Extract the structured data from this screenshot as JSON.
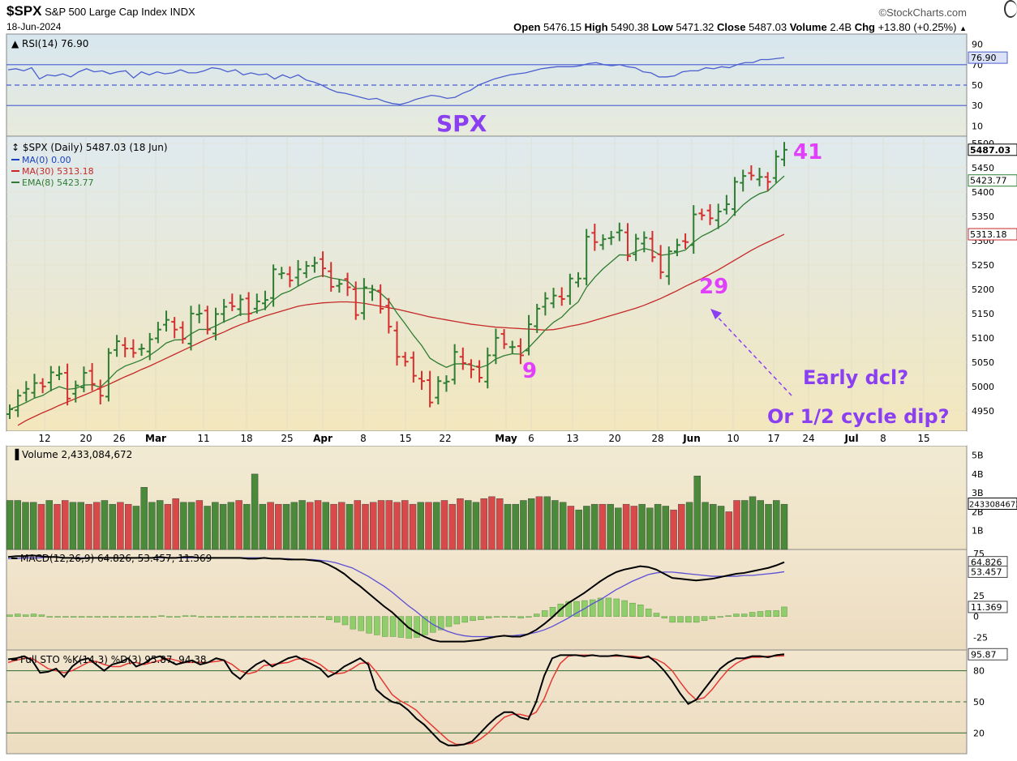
{
  "header": {
    "symbol": "$SPX",
    "name": "S&P 500 Large Cap Index",
    "exchange": "INDX",
    "date": "18-Jun-2024",
    "brand": "©StockCharts.com",
    "open_label": "Open",
    "open": "5476.15",
    "high_label": "High",
    "high": "5490.38",
    "low_label": "Low",
    "low": "5471.32",
    "close_label": "Close",
    "close": "5487.03",
    "volume_label": "Volume",
    "volume": "2.4B",
    "chg_label": "Chg",
    "chg": "+13.80 (+0.25%)",
    "chg_arrow": "▲"
  },
  "colors": {
    "up": "#2e7d32",
    "down": "#d32f2f",
    "ma30": "#c62828",
    "ema8": "#2e7d32",
    "rsi": "#4a5fd0",
    "macd": "#000000",
    "signal": "#5b4fd6",
    "annotation_magenta": "#e040fb",
    "annotation_purple": "#8a3ff0",
    "panel_bg_top": "#dde9ee",
    "panel_bg_bottom": "#f0e6c0"
  },
  "annotations": {
    "spx": "SPX",
    "n41": "41",
    "n29": "29",
    "n9": "9",
    "early": "Early dcl?",
    "half": "Or 1/2 cycle dip?"
  },
  "chart_data": [
    {
      "type": "line",
      "panel": "RSI",
      "legend": "RSI(14) 76.90",
      "y_ticks": [
        90,
        70,
        50,
        30,
        10
      ],
      "ylim": [
        0,
        100
      ],
      "last_value_label": "76.90",
      "series": [
        {
          "name": "RSI(14)",
          "values": [
            65,
            66,
            64,
            67,
            56,
            60,
            59,
            61,
            58,
            63,
            66,
            63,
            64,
            61,
            63,
            64,
            57,
            63,
            60,
            63,
            61,
            62,
            65,
            62,
            62,
            64,
            67,
            66,
            63,
            65,
            60,
            62,
            60,
            61,
            56,
            60,
            57,
            60,
            55,
            53,
            50,
            46,
            43,
            42,
            40,
            38,
            36,
            37,
            34,
            32,
            31,
            33,
            36,
            38,
            40,
            39,
            37,
            38,
            42,
            45,
            50,
            53,
            56,
            58,
            60,
            61,
            62,
            64,
            66,
            67,
            68,
            68,
            68,
            69,
            71,
            72,
            70,
            69,
            70,
            68,
            67,
            63,
            62,
            58,
            58,
            59,
            63,
            64,
            64,
            67,
            66,
            68,
            67,
            70,
            72,
            72,
            75,
            75,
            76,
            76.9
          ]
        }
      ]
    },
    {
      "type": "bar",
      "panel": "Price",
      "legend": "$SPX (Daily) 5487.03 (18 Jun)",
      "legend_items": [
        "MA(0) 0.00",
        "MA(30) 5313.18",
        "EMA(8) 5423.77"
      ],
      "y_ticks": [
        5500,
        5450,
        5400,
        5350,
        5300,
        5250,
        5200,
        5150,
        5100,
        5050,
        5000,
        4950
      ],
      "ylim": [
        4908,
        5515
      ],
      "x_ticks": [
        "12",
        "20",
        "26",
        "Mar",
        "11",
        "18",
        "25",
        "Apr",
        "8",
        "15",
        "22",
        "May",
        "6",
        "13",
        "20",
        "28",
        "Jun",
        "10",
        "17",
        "24",
        "Jul",
        "8",
        "15"
      ],
      "price_labels": [
        "5487.03",
        "5423.77",
        "5313.18"
      ],
      "close": [
        4953,
        4981,
        4995,
        5007,
        5000,
        5029,
        5026,
        4975,
        5002,
        5028,
        5005,
        4981,
        5069,
        5093,
        5078,
        5069,
        5078,
        5097,
        5117,
        5137,
        5117,
        5098,
        5150,
        5150,
        5117,
        5149,
        5164,
        5165,
        5179,
        5150,
        5175,
        5178,
        5241,
        5233,
        5218,
        5241,
        5248,
        5254,
        5243,
        5205,
        5211,
        5204,
        5147,
        5204,
        5199,
        5160,
        5123,
        5061,
        5051,
        5022,
        5011,
        4967,
        5011,
        5010,
        5071,
        5048,
        5035,
        5018,
        5064,
        5100,
        5087,
        5081,
        5064,
        5128,
        5160,
        5181,
        5187,
        5180,
        5222,
        5222,
        5308,
        5297,
        5303,
        5307,
        5321,
        5268,
        5304,
        5306,
        5266,
        5235,
        5278,
        5291,
        5297,
        5354,
        5352,
        5346,
        5360,
        5375,
        5421,
        5433,
        5434,
        5431,
        5421,
        5473,
        5487
      ],
      "ma30": [
        4920,
        4930,
        4938,
        4946,
        4953,
        4961,
        4968,
        4975,
        4982,
        4989,
        4997,
        5004,
        5012,
        5020,
        5027,
        5035,
        5042,
        5050,
        5058,
        5066,
        5074,
        5082,
        5090,
        5098,
        5105,
        5112,
        5120,
        5127,
        5133,
        5139,
        5145,
        5150,
        5155,
        5160,
        5165,
        5168,
        5170,
        5172,
        5173,
        5174,
        5174,
        5173,
        5171,
        5168,
        5165,
        5162,
        5159,
        5155,
        5151,
        5147,
        5143,
        5140,
        5137,
        5134,
        5131,
        5128,
        5126,
        5124,
        5122,
        5121,
        5120,
        5119,
        5118,
        5117,
        5116,
        5117,
        5120,
        5124,
        5127,
        5131,
        5136,
        5141,
        5146,
        5151,
        5156,
        5161,
        5167,
        5174,
        5181,
        5189,
        5197,
        5206,
        5214,
        5222,
        5231,
        5240,
        5250,
        5260,
        5270,
        5280,
        5289,
        5297,
        5305,
        5313.18
      ]
    },
    {
      "type": "bar",
      "panel": "Volume",
      "legend": "Volume 2,433,084,672",
      "y_ticks": [
        "5B",
        "4B",
        "3B",
        "2B",
        "1B"
      ],
      "ylim": [
        0,
        5.5
      ],
      "last_value_label": "2433084672",
      "values": [
        2.6,
        2.6,
        2.5,
        2.5,
        2.4,
        2.6,
        2.4,
        2.6,
        2.5,
        2.5,
        2.4,
        2.5,
        2.6,
        2.4,
        2.5,
        2.4,
        2.3,
        3.3,
        2.5,
        2.6,
        2.4,
        2.7,
        2.5,
        2.5,
        2.6,
        2.3,
        2.5,
        2.4,
        2.5,
        2.6,
        2.4,
        4.0,
        2.4,
        2.5,
        2.4,
        2.4,
        2.5,
        2.6,
        2.5,
        2.6,
        2.5,
        2.4,
        2.5,
        2.4,
        2.6,
        2.4,
        2.5,
        2.6,
        2.6,
        2.5,
        2.6,
        2.4,
        2.5,
        2.5,
        2.5,
        2.6,
        2.4,
        2.7,
        2.6,
        2.5,
        2.7,
        2.8,
        2.7,
        2.4,
        2.4,
        2.6,
        2.7,
        2.8,
        2.8,
        2.6,
        2.5,
        2.3,
        2.1,
        2.3,
        2.4,
        2.4,
        2.4,
        2.2,
        2.4,
        2.3,
        2.4,
        2.2,
        2.4,
        2.3,
        2.1,
        2.4,
        2.5,
        3.9,
        2.5,
        2.4,
        2.3,
        2.0,
        2.6,
        2.6,
        2.8,
        2.6,
        2.4,
        2.6,
        2.4
      ]
    },
    {
      "type": "line",
      "panel": "MACD",
      "legend": "MACD(12,26,9) 64.826, 53.457, 11.369",
      "y_ticks": [
        75,
        25,
        0,
        -25
      ],
      "ylim": [
        -40,
        80
      ],
      "last_value_labels": [
        "64.826",
        "53.457",
        "11.369"
      ],
      "series": [
        {
          "name": "MACD(12,26,9)",
          "values": [
            71,
            72,
            72,
            73,
            72,
            71,
            71,
            70,
            70,
            69,
            70,
            70,
            70,
            70,
            70,
            70,
            70,
            70,
            70,
            71,
            70,
            70,
            71,
            71,
            70,
            70,
            70,
            70,
            70,
            70,
            69,
            69,
            70,
            69,
            69,
            68,
            68,
            68,
            67,
            66,
            62,
            57,
            51,
            43,
            36,
            28,
            20,
            12,
            5,
            -4,
            -13,
            -19,
            -24,
            -28,
            -30,
            -30,
            -30,
            -30,
            -29,
            -28,
            -26,
            -24,
            -23,
            -24,
            -24,
            -21,
            -16,
            -9,
            -1,
            8,
            16,
            22,
            28,
            35,
            42,
            48,
            53,
            56,
            58,
            60,
            59,
            56,
            51,
            46,
            45,
            44,
            43,
            44,
            45,
            47,
            49,
            51,
            52,
            54,
            56,
            58,
            61,
            64.826
          ]
        },
        {
          "name": "signal",
          "values": [
            69,
            69,
            70,
            70,
            70,
            71,
            71,
            70,
            70,
            70,
            70,
            70,
            70,
            70,
            70,
            70,
            70,
            70,
            70,
            70,
            70,
            70,
            70,
            70,
            70,
            70,
            70,
            70,
            70,
            70,
            70,
            70,
            70,
            69,
            69,
            69,
            68,
            68,
            68,
            67,
            66,
            64,
            61,
            58,
            53,
            48,
            42,
            36,
            29,
            21,
            13,
            6,
            -2,
            -9,
            -14,
            -18,
            -21,
            -23,
            -24,
            -24,
            -24,
            -24,
            -23,
            -23,
            -22,
            -21,
            -19,
            -16,
            -12,
            -7,
            -2,
            4,
            9,
            15,
            20,
            26,
            32,
            37,
            42,
            46,
            50,
            52,
            53,
            53,
            52,
            51,
            50,
            49,
            48,
            48,
            48,
            48,
            49,
            49,
            50,
            51,
            52,
            53.457
          ]
        },
        {
          "name": "histogram",
          "values": [
            2,
            3,
            2,
            3,
            2,
            0,
            0,
            0,
            0,
            -1,
            0,
            0,
            0,
            0,
            0,
            0,
            0,
            0,
            0,
            1,
            0,
            0,
            1,
            1,
            0,
            0,
            0,
            0,
            0,
            0,
            -1,
            -1,
            0,
            0,
            0,
            -1,
            0,
            0,
            -1,
            -1,
            -4,
            -7,
            -10,
            -15,
            -17,
            -20,
            -22,
            -24,
            -24,
            -25,
            -26,
            -25,
            -22,
            -19,
            -16,
            -12,
            -9,
            -7,
            -5,
            -4,
            -2,
            0,
            0,
            -1,
            -2,
            0,
            3,
            7,
            11,
            15,
            18,
            18,
            19,
            20,
            22,
            22,
            21,
            19,
            16,
            14,
            9,
            4,
            -2,
            -7,
            -7,
            -7,
            -7,
            -5,
            -3,
            -1,
            1,
            3,
            3,
            5,
            6,
            7,
            7,
            11.369
          ]
        }
      ]
    },
    {
      "type": "line",
      "panel": "Full STO",
      "legend": "Full STO %K(14,3) %D(3) 95.87, 94.38",
      "y_ticks": [
        80,
        50,
        20
      ],
      "ylim": [
        0,
        100
      ],
      "last_value_label": "95.87",
      "series": [
        {
          "name": "%K(14,3)",
          "values": [
            91,
            92,
            94,
            90,
            78,
            79,
            82,
            74,
            84,
            90,
            92,
            86,
            80,
            86,
            88,
            92,
            84,
            87,
            92,
            94,
            90,
            86,
            88,
            90,
            86,
            88,
            92,
            90,
            78,
            72,
            80,
            86,
            90,
            84,
            88,
            92,
            94,
            90,
            86,
            82,
            74,
            78,
            84,
            88,
            92,
            86,
            62,
            55,
            50,
            48,
            42,
            34,
            28,
            20,
            12,
            8,
            8,
            9,
            12,
            20,
            28,
            35,
            40,
            40,
            35,
            33,
            50,
            75,
            92,
            95,
            95,
            95,
            94,
            95,
            94,
            94,
            95,
            94,
            93,
            92,
            94,
            88,
            80,
            70,
            58,
            48,
            52,
            62,
            72,
            82,
            88,
            92,
            92,
            94,
            94,
            93,
            95,
            95.87
          ]
        },
        {
          "name": "%D(3)",
          "values": [
            88,
            90,
            92,
            92,
            87,
            82,
            80,
            78,
            80,
            84,
            88,
            89,
            86,
            84,
            84,
            87,
            88,
            86,
            88,
            90,
            92,
            90,
            88,
            88,
            88,
            88,
            89,
            90,
            86,
            80,
            77,
            79,
            85,
            86,
            87,
            88,
            91,
            92,
            90,
            86,
            80,
            77,
            78,
            82,
            87,
            88,
            79,
            68,
            57,
            51,
            47,
            42,
            34,
            27,
            20,
            13,
            9,
            9,
            10,
            14,
            20,
            28,
            35,
            38,
            38,
            36,
            40,
            53,
            72,
            87,
            94,
            95,
            95,
            95,
            94,
            94,
            94,
            94,
            94,
            93,
            93,
            91,
            87,
            80,
            69,
            59,
            52,
            54,
            62,
            72,
            81,
            87,
            91,
            93,
            93,
            94,
            94,
            94.38
          ]
        }
      ]
    }
  ]
}
